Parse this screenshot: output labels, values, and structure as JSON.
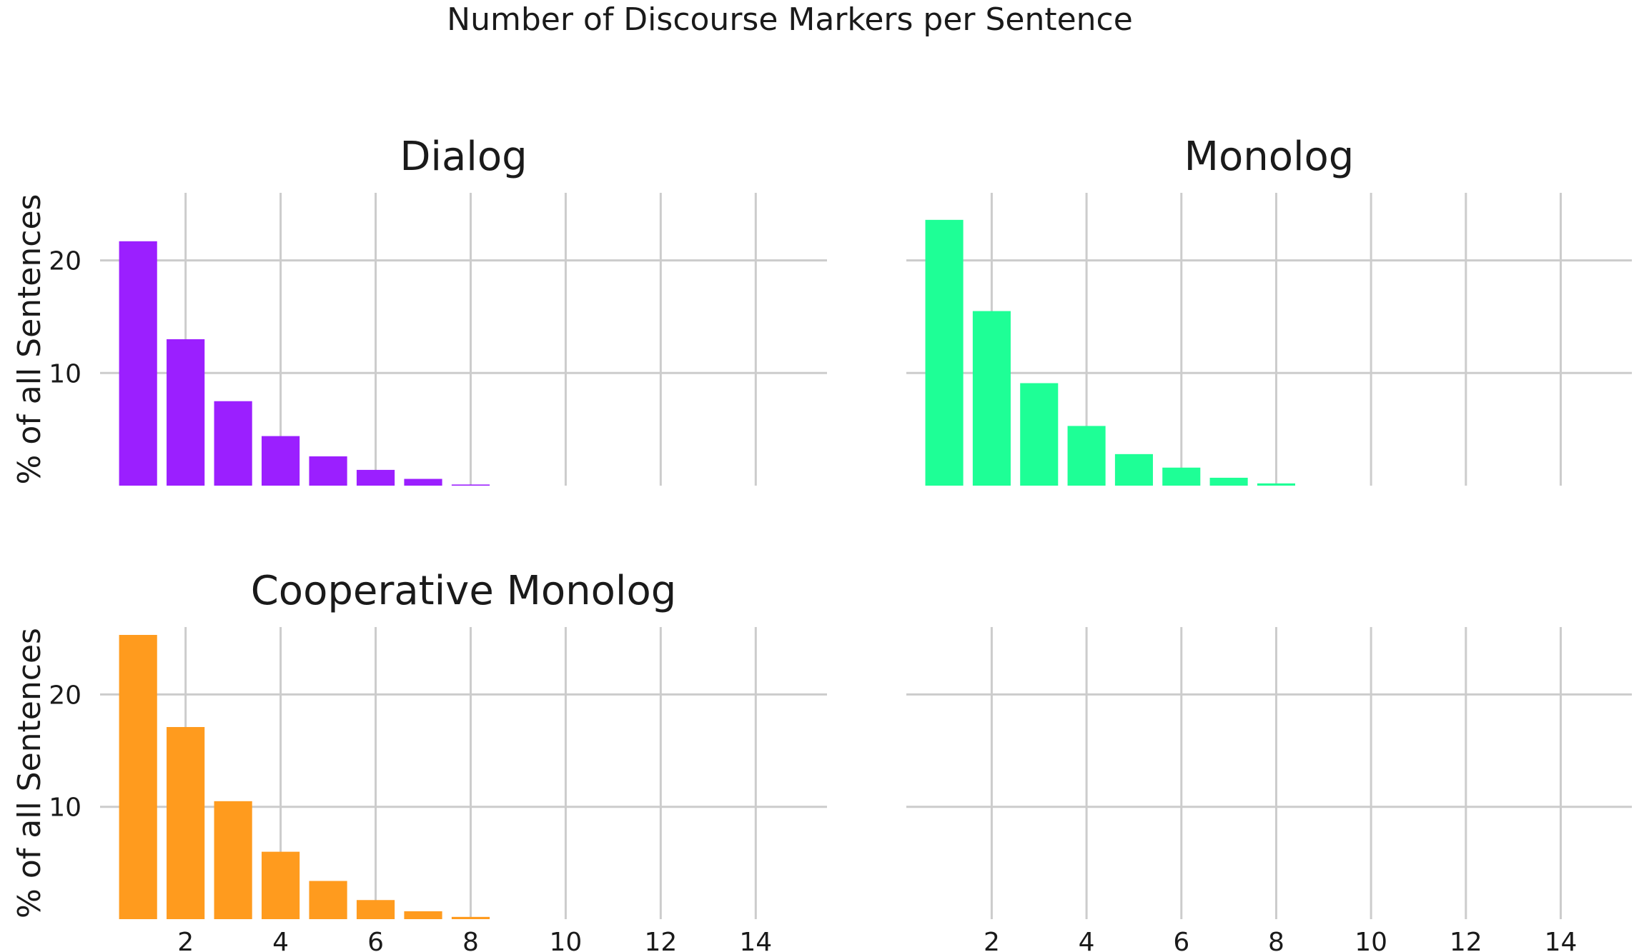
{
  "figure": {
    "title": "Number of Discourse Markers per Sentence"
  },
  "chart_data": [
    {
      "type": "bar",
      "title": "Dialog",
      "xlabel": "",
      "ylabel": "% of all Sentences",
      "x": [
        1,
        2,
        3,
        4,
        5,
        6,
        7,
        8
      ],
      "values": [
        21.7,
        13.0,
        7.5,
        4.4,
        2.6,
        1.4,
        0.6,
        0.1
      ],
      "color": "#9b1fff",
      "xlim": [
        0.2,
        15.5
      ],
      "ylim": [
        0,
        26
      ],
      "xticks": [
        "2",
        "4",
        "6",
        "8",
        "10",
        "12",
        "14"
      ],
      "yticks": [
        "10",
        "20"
      ],
      "show_xtick_labels": false,
      "grid": true
    },
    {
      "type": "bar",
      "title": "Monolog",
      "xlabel": "",
      "ylabel": "",
      "x": [
        1,
        2,
        3,
        4,
        5,
        6,
        7,
        8
      ],
      "values": [
        23.6,
        15.5,
        9.1,
        5.3,
        2.8,
        1.6,
        0.7,
        0.2
      ],
      "color": "#1eff96",
      "xlim": [
        0.2,
        15.5
      ],
      "ylim": [
        0,
        26
      ],
      "xticks": [
        "2",
        "4",
        "6",
        "8",
        "10",
        "12",
        "14"
      ],
      "yticks": [],
      "show_xtick_labels": false,
      "grid": true
    },
    {
      "type": "bar",
      "title": "Cooperative Monolog",
      "xlabel": "",
      "ylabel": "% of all Sentences",
      "x": [
        1,
        2,
        3,
        4,
        5,
        6,
        7,
        8
      ],
      "values": [
        25.3,
        17.1,
        10.5,
        6.0,
        3.4,
        1.7,
        0.7,
        0.2
      ],
      "color": "#ff9b1e",
      "xlim": [
        0.2,
        15.5
      ],
      "ylim": [
        0,
        26
      ],
      "xticks": [
        "2",
        "4",
        "6",
        "8",
        "10",
        "12",
        "14"
      ],
      "yticks": [
        "10",
        "20"
      ],
      "show_xtick_labels": true,
      "grid": true
    },
    {
      "type": "bar",
      "title": "",
      "xlabel": "",
      "ylabel": "",
      "x": [],
      "values": [],
      "color": "",
      "xlim": [
        0.2,
        15.5
      ],
      "ylim": [
        0,
        26
      ],
      "xticks": [
        "2",
        "4",
        "6",
        "8",
        "10",
        "12",
        "14"
      ],
      "yticks": [],
      "show_xtick_labels": true,
      "grid": true
    }
  ]
}
